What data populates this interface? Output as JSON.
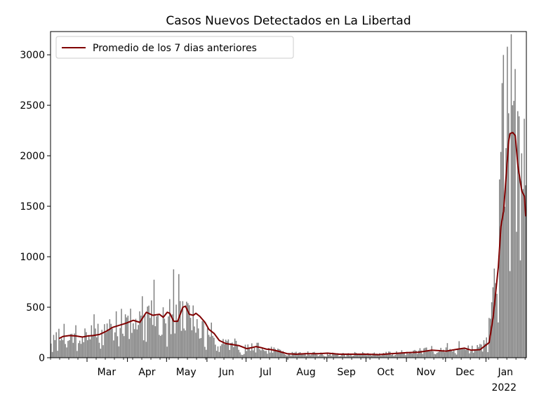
{
  "chart_data": {
    "type": "bar",
    "title": "Casos Nuevos Detectados en La Libertad",
    "xlabel": "",
    "ylabel": "",
    "ylim": [
      0,
      3230
    ],
    "x_range": [
      "2021-02-01",
      "2022-01-31"
    ],
    "grid": false,
    "bar_color": "#808080",
    "yticks": [
      0,
      500,
      1000,
      1500,
      2000,
      2500,
      3000
    ],
    "xticks": [
      {
        "date": "2021-03-01",
        "label": "Mar",
        "sublabel": ""
      },
      {
        "date": "2021-04-01",
        "label": "Apr",
        "sublabel": ""
      },
      {
        "date": "2021-05-01",
        "label": "May",
        "sublabel": ""
      },
      {
        "date": "2021-06-01",
        "label": "Jun",
        "sublabel": ""
      },
      {
        "date": "2021-07-01",
        "label": "Jul",
        "sublabel": ""
      },
      {
        "date": "2021-08-01",
        "label": "Aug",
        "sublabel": ""
      },
      {
        "date": "2021-09-01",
        "label": "Sep",
        "sublabel": ""
      },
      {
        "date": "2021-10-01",
        "label": "Oct",
        "sublabel": ""
      },
      {
        "date": "2021-11-01",
        "label": "Nov",
        "sublabel": ""
      },
      {
        "date": "2021-12-01",
        "label": "Dec",
        "sublabel": ""
      },
      {
        "date": "2022-01-01",
        "label": "Jan",
        "sublabel": "2022"
      }
    ],
    "legend": {
      "placement": "upper-left",
      "entries": [
        {
          "label": "Promedio de los 7 dias anteriores",
          "color": "#800000"
        }
      ]
    },
    "bars_anchor_points": [
      [
        "2021-02-01",
        220
      ],
      [
        "2021-02-05",
        200
      ],
      [
        "2021-02-10",
        240
      ],
      [
        "2021-02-15",
        210
      ],
      [
        "2021-02-20",
        230
      ],
      [
        "2021-02-25",
        220
      ],
      [
        "2021-03-01",
        210
      ],
      [
        "2021-03-06",
        240
      ],
      [
        "2021-03-12",
        230
      ],
      [
        "2021-03-18",
        280
      ],
      [
        "2021-03-24",
        340
      ],
      [
        "2021-03-30",
        380
      ],
      [
        "2021-04-05",
        350
      ],
      [
        "2021-04-10",
        420
      ],
      [
        "2021-04-15",
        440
      ],
      [
        "2021-04-20",
        420
      ],
      [
        "2021-04-25",
        380
      ],
      [
        "2021-04-30",
        430
      ],
      [
        "2021-05-05",
        360
      ],
      [
        "2021-05-10",
        470
      ],
      [
        "2021-05-15",
        440
      ],
      [
        "2021-05-20",
        400
      ],
      [
        "2021-05-25",
        330
      ],
      [
        "2021-05-31",
        230
      ],
      [
        "2021-06-07",
        170
      ],
      [
        "2021-06-15",
        130
      ],
      [
        "2021-06-25",
        115
      ],
      [
        "2021-07-01",
        90
      ],
      [
        "2021-07-08",
        110
      ],
      [
        "2021-07-15",
        90
      ],
      [
        "2021-07-22",
        75
      ],
      [
        "2021-08-01",
        40
      ],
      [
        "2021-08-15",
        45
      ],
      [
        "2021-09-01",
        40
      ],
      [
        "2021-09-15",
        35
      ],
      [
        "2021-10-01",
        35
      ],
      [
        "2021-10-15",
        40
      ],
      [
        "2021-11-01",
        55
      ],
      [
        "2021-11-15",
        70
      ],
      [
        "2021-12-01",
        75
      ],
      [
        "2021-12-12",
        95
      ],
      [
        "2021-12-20",
        80
      ],
      [
        "2021-12-28",
        100
      ],
      [
        "2022-01-01",
        150
      ],
      [
        "2022-01-04",
        350
      ],
      [
        "2022-01-07",
        600
      ],
      [
        "2022-01-10",
        1100
      ],
      [
        "2022-01-13",
        1800
      ],
      [
        "2022-01-16",
        2300
      ],
      [
        "2022-01-19",
        2500
      ],
      [
        "2022-01-22",
        2200
      ],
      [
        "2022-01-25",
        1900
      ],
      [
        "2022-01-28",
        1600
      ],
      [
        "2022-01-31",
        1300
      ]
    ],
    "series": [
      {
        "name": "Promedio de los 7 dias anteriores",
        "color": "#800000",
        "points": [
          [
            "2021-02-07",
            190
          ],
          [
            "2021-02-10",
            210
          ],
          [
            "2021-02-15",
            220
          ],
          [
            "2021-02-20",
            215
          ],
          [
            "2021-02-25",
            205
          ],
          [
            "2021-03-01",
            215
          ],
          [
            "2021-03-05",
            220
          ],
          [
            "2021-03-10",
            230
          ],
          [
            "2021-03-15",
            260
          ],
          [
            "2021-03-20",
            300
          ],
          [
            "2021-03-25",
            320
          ],
          [
            "2021-03-30",
            340
          ],
          [
            "2021-04-05",
            370
          ],
          [
            "2021-04-10",
            350
          ],
          [
            "2021-04-15",
            450
          ],
          [
            "2021-04-20",
            420
          ],
          [
            "2021-04-25",
            430
          ],
          [
            "2021-04-28",
            400
          ],
          [
            "2021-05-01",
            450
          ],
          [
            "2021-05-03",
            440
          ],
          [
            "2021-05-06",
            360
          ],
          [
            "2021-05-09",
            360
          ],
          [
            "2021-05-13",
            500
          ],
          [
            "2021-05-15",
            510
          ],
          [
            "2021-05-18",
            430
          ],
          [
            "2021-05-21",
            420
          ],
          [
            "2021-05-23",
            440
          ],
          [
            "2021-05-26",
            410
          ],
          [
            "2021-05-30",
            350
          ],
          [
            "2021-06-02",
            280
          ],
          [
            "2021-06-06",
            240
          ],
          [
            "2021-06-10",
            170
          ],
          [
            "2021-06-15",
            140
          ],
          [
            "2021-06-20",
            130
          ],
          [
            "2021-06-25",
            120
          ],
          [
            "2021-07-01",
            90
          ],
          [
            "2021-07-05",
            100
          ],
          [
            "2021-07-08",
            110
          ],
          [
            "2021-07-12",
            100
          ],
          [
            "2021-07-16",
            85
          ],
          [
            "2021-07-20",
            80
          ],
          [
            "2021-07-25",
            65
          ],
          [
            "2021-08-01",
            40
          ],
          [
            "2021-08-08",
            35
          ],
          [
            "2021-08-15",
            40
          ],
          [
            "2021-08-25",
            40
          ],
          [
            "2021-09-01",
            45
          ],
          [
            "2021-09-10",
            35
          ],
          [
            "2021-09-20",
            35
          ],
          [
            "2021-10-01",
            35
          ],
          [
            "2021-10-10",
            30
          ],
          [
            "2021-10-20",
            40
          ],
          [
            "2021-11-01",
            50
          ],
          [
            "2021-11-10",
            55
          ],
          [
            "2021-11-20",
            75
          ],
          [
            "2021-12-01",
            65
          ],
          [
            "2021-12-10",
            85
          ],
          [
            "2021-12-15",
            95
          ],
          [
            "2021-12-20",
            75
          ],
          [
            "2021-12-27",
            80
          ],
          [
            "2021-12-31",
            120
          ],
          [
            "2022-01-03",
            150
          ],
          [
            "2022-01-06",
            400
          ],
          [
            "2022-01-08",
            650
          ],
          [
            "2022-01-10",
            900
          ],
          [
            "2022-01-12",
            1300
          ],
          [
            "2022-01-14",
            1450
          ],
          [
            "2022-01-16",
            1800
          ],
          [
            "2022-01-18",
            2150
          ],
          [
            "2022-01-19",
            2220
          ],
          [
            "2022-01-21",
            2230
          ],
          [
            "2022-01-23",
            2200
          ],
          [
            "2022-01-25",
            1900
          ],
          [
            "2022-01-28",
            1650
          ],
          [
            "2022-01-30",
            1600
          ],
          [
            "2022-01-31",
            1400
          ]
        ]
      }
    ]
  }
}
